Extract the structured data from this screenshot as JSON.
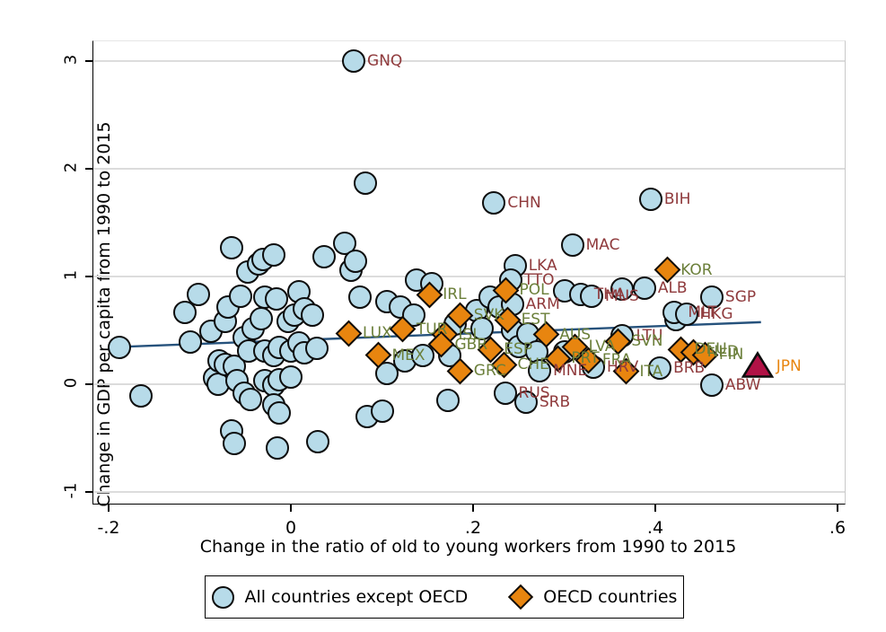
{
  "figure": {
    "x_axis": {
      "title": "Change in the ratio of old to young workers from 1990 to 2015",
      "ticks": [
        {
          "label": "-.2",
          "value": -0.2
        },
        {
          "label": "0",
          "value": 0
        },
        {
          "label": ".2",
          "value": 0.2
        },
        {
          "label": ".4",
          "value": 0.4
        },
        {
          "label": ".6",
          "value": 0.6
        }
      ]
    },
    "y_axis": {
      "title": "Change in GDP per capita from 1990 to 2015",
      "ticks": [
        {
          "label": "-1",
          "value": -1
        },
        {
          "label": "0",
          "value": 0
        },
        {
          "label": "1",
          "value": 1
        },
        {
          "label": "2",
          "value": 2
        },
        {
          "label": "3",
          "value": 3
        }
      ]
    },
    "legend": {
      "non_oecd_label": "All countries except OECD",
      "oecd_label": "OECD countries"
    },
    "colors": {
      "circle_fill": "#b7dbe9",
      "diamond_fill": "#e8850f",
      "triangle_fill": "#b11246",
      "marker_stroke": "#0d0d0d",
      "label_non_oecd": "#8f3a3c",
      "label_oecd": "#6b7f3a",
      "label_jpn": "#e8850f",
      "trend_line": "#26527c",
      "gridline": "#dcdcdc"
    }
  },
  "chart_data": {
    "type": "scatter",
    "title": "",
    "xlabel": "Change in the ratio of old to young workers from 1990 to 2015",
    "ylabel": "Change in GDP per capita from 1990 to 2015",
    "xlim": [
      -0.22,
      0.62
    ],
    "ylim": [
      -1.15,
      3.2
    ],
    "grid": "horizontal",
    "legend_position": "bottom",
    "trend_line": {
      "x1": -0.185,
      "y1": 0.347,
      "x2": 0.516,
      "y2": 0.576
    },
    "series": [
      {
        "name": "All countries except OECD",
        "marker": "circle",
        "labeled_points": [
          {
            "code": "GNQ",
            "x": 0.069,
            "y": 3.0
          },
          {
            "code": "CHN",
            "x": 0.223,
            "y": 1.68
          },
          {
            "code": "BIH",
            "x": 0.395,
            "y": 1.72
          },
          {
            "code": "MAC",
            "x": 0.309,
            "y": 1.29
          },
          {
            "code": "LKA",
            "x": 0.246,
            "y": 1.1
          },
          {
            "code": "TTO",
            "x": 0.241,
            "y": 0.97
          },
          {
            "code": "ALB",
            "x": 0.388,
            "y": 0.89
          },
          {
            "code": "THA",
            "x": 0.318,
            "y": 0.83
          },
          {
            "code": "MUS",
            "x": 0.33,
            "y": 0.82
          },
          {
            "code": "SGP",
            "x": 0.462,
            "y": 0.81
          },
          {
            "code": "ARM",
            "x": 0.243,
            "y": 0.74
          },
          {
            "code": "MLT",
            "x": 0.421,
            "y": 0.67
          },
          {
            "code": "HKG",
            "x": 0.434,
            "y": 0.65
          },
          {
            "code": "LTU",
            "x": 0.364,
            "y": 0.45
          },
          {
            "code": "HRV",
            "x": 0.332,
            "y": 0.16
          },
          {
            "code": "MNE",
            "x": 0.273,
            "y": 0.125
          },
          {
            "code": "BRB",
            "x": 0.405,
            "y": 0.15
          },
          {
            "code": "RUS",
            "x": 0.235,
            "y": -0.08
          },
          {
            "code": "SRB",
            "x": 0.258,
            "y": -0.17
          },
          {
            "code": "ABW",
            "x": 0.462,
            "y": -0.01
          }
        ],
        "unlabeled_points": [
          [
            -0.188,
            0.34
          ],
          [
            -0.165,
            -0.11
          ],
          [
            -0.116,
            0.67
          ],
          [
            -0.11,
            0.39
          ],
          [
            -0.101,
            0.83
          ],
          [
            -0.088,
            0.49
          ],
          [
            -0.084,
            0.06
          ],
          [
            -0.08,
            0.0
          ],
          [
            -0.079,
            0.22
          ],
          [
            -0.072,
            0.58
          ],
          [
            -0.072,
            0.18
          ],
          [
            -0.069,
            0.72
          ],
          [
            -0.065,
            1.27
          ],
          [
            -0.065,
            -0.43
          ],
          [
            -0.062,
            0.17
          ],
          [
            -0.062,
            -0.55
          ],
          [
            -0.059,
            0.03
          ],
          [
            -0.055,
            0.82
          ],
          [
            -0.051,
            0.43
          ],
          [
            -0.051,
            -0.08
          ],
          [
            -0.047,
            1.04
          ],
          [
            -0.046,
            0.31
          ],
          [
            -0.044,
            -0.14
          ],
          [
            -0.041,
            0.52
          ],
          [
            -0.035,
            1.12
          ],
          [
            -0.033,
            0.61
          ],
          [
            -0.031,
            1.16
          ],
          [
            -0.029,
            0.81
          ],
          [
            -0.029,
            0.31
          ],
          [
            -0.029,
            0.03
          ],
          [
            -0.019,
            1.2
          ],
          [
            -0.019,
            0.27
          ],
          [
            -0.019,
            -0.01
          ],
          [
            -0.019,
            -0.19
          ],
          [
            -0.016,
            0.79
          ],
          [
            -0.015,
            -0.59
          ],
          [
            -0.013,
            0.34
          ],
          [
            -0.013,
            0.04
          ],
          [
            -0.013,
            -0.27
          ],
          [
            -0.003,
            0.58
          ],
          [
            0.0,
            0.31
          ],
          [
            0.0,
            0.07
          ],
          [
            0.004,
            0.64
          ],
          [
            0.009,
            0.86
          ],
          [
            0.009,
            0.38
          ],
          [
            0.015,
            0.7
          ],
          [
            0.015,
            0.29
          ],
          [
            0.024,
            0.64
          ],
          [
            0.029,
            0.33
          ],
          [
            0.03,
            -0.53
          ],
          [
            0.036,
            1.18
          ],
          [
            0.059,
            1.31
          ],
          [
            0.066,
            1.06
          ],
          [
            0.071,
            1.14
          ],
          [
            0.076,
            0.81
          ],
          [
            0.082,
            1.87
          ],
          [
            0.084,
            -0.3
          ],
          [
            0.1,
            -0.25
          ],
          [
            0.105,
            0.77
          ],
          [
            0.105,
            0.1
          ],
          [
            0.12,
            0.72
          ],
          [
            0.125,
            0.22
          ],
          [
            0.135,
            0.64
          ],
          [
            0.138,
            0.97
          ],
          [
            0.145,
            0.27
          ],
          [
            0.155,
            0.93
          ],
          [
            0.172,
            -0.15
          ],
          [
            0.174,
            0.27
          ],
          [
            0.18,
            0.56
          ],
          [
            0.204,
            0.68
          ],
          [
            0.21,
            0.52
          ],
          [
            0.219,
            0.81
          ],
          [
            0.229,
            0.72
          ],
          [
            0.243,
            0.5
          ],
          [
            0.25,
            0.35
          ],
          [
            0.26,
            0.47
          ],
          [
            0.27,
            0.3
          ],
          [
            0.3,
            0.87
          ],
          [
            0.3,
            0.3
          ],
          [
            0.364,
            0.88
          ],
          [
            0.423,
            0.6
          ]
        ]
      },
      {
        "name": "OECD countries",
        "marker": "diamond",
        "labeled_points": [
          {
            "code": "KOR",
            "x": 0.413,
            "y": 1.06
          },
          {
            "code": "POL",
            "x": 0.236,
            "y": 0.875
          },
          {
            "code": "IRL",
            "x": 0.152,
            "y": 0.83
          },
          {
            "code": "SVK",
            "x": 0.186,
            "y": 0.64
          },
          {
            "code": "EST",
            "x": 0.238,
            "y": 0.6
          },
          {
            "code": "TUR",
            "x": 0.123,
            "y": 0.51
          },
          {
            "code": "LUX",
            "x": 0.064,
            "y": 0.475
          },
          {
            "code": "ISL",
            "x": 0.169,
            "y": 0.46
          },
          {
            "code": "AUS",
            "x": 0.28,
            "y": 0.46
          },
          {
            "code": "SVN",
            "x": 0.359,
            "y": 0.4
          },
          {
            "code": "GBR",
            "x": 0.165,
            "y": 0.37
          },
          {
            "code": "LVA",
            "x": 0.312,
            "y": 0.35
          },
          {
            "code": "ESP",
            "x": 0.219,
            "y": 0.325
          },
          {
            "code": "DEU",
            "x": 0.428,
            "y": 0.325
          },
          {
            "code": "NLD",
            "x": 0.442,
            "y": 0.3
          },
          {
            "code": "FIN",
            "x": 0.455,
            "y": 0.275
          },
          {
            "code": "MEX",
            "x": 0.096,
            "y": 0.27
          },
          {
            "code": "PRT",
            "x": 0.293,
            "y": 0.24
          },
          {
            "code": "FRA",
            "x": 0.327,
            "y": 0.225
          },
          {
            "code": "CHE",
            "x": 0.234,
            "y": 0.18
          },
          {
            "code": "GRC",
            "x": 0.186,
            "y": 0.125
          },
          {
            "code": "ITA",
            "x": 0.368,
            "y": 0.12
          }
        ],
        "unlabeled_points": []
      },
      {
        "name": "Japan",
        "marker": "triangle",
        "labeled_points": [
          {
            "code": "JPN",
            "x": 0.512,
            "y": 0.17
          }
        ],
        "unlabeled_points": []
      }
    ]
  }
}
